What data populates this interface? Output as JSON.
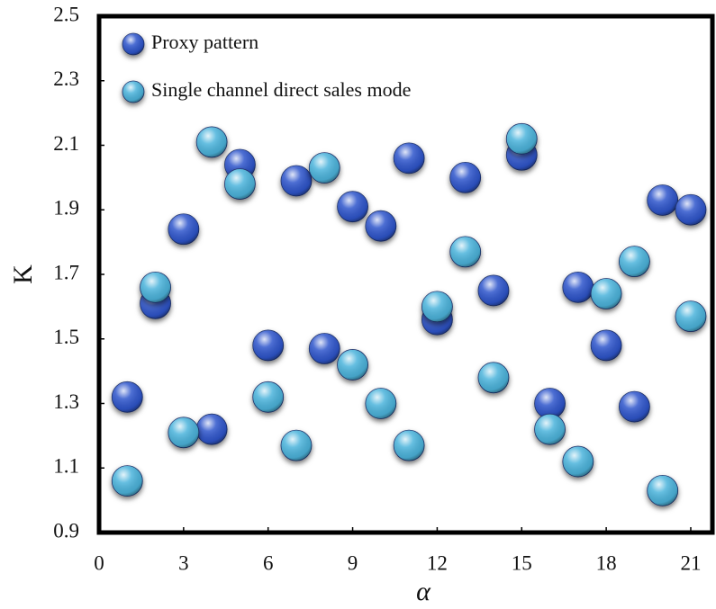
{
  "chart_data": {
    "type": "scatter",
    "x_label": "α",
    "y_label": "K",
    "x": [
      1,
      2,
      3,
      4,
      5,
      6,
      7,
      8,
      9,
      10,
      11,
      12,
      13,
      14,
      15,
      16,
      17,
      18,
      19,
      20,
      21
    ],
    "series": [
      {
        "name": "Proxy pattern",
        "color": "#2f56cc",
        "values": [
          1.32,
          1.61,
          1.84,
          1.22,
          2.04,
          1.48,
          1.99,
          1.47,
          1.91,
          1.85,
          2.06,
          1.56,
          2.0,
          1.65,
          2.07,
          1.3,
          1.66,
          1.48,
          1.29,
          1.93,
          1.9
        ]
      },
      {
        "name": "Single channel direct sales mode",
        "color": "#4cb4dc",
        "values": [
          1.06,
          1.66,
          1.21,
          2.11,
          1.98,
          1.32,
          1.17,
          2.03,
          1.42,
          1.3,
          1.17,
          1.6,
          1.77,
          1.38,
          2.12,
          1.22,
          1.12,
          1.64,
          1.74,
          1.03,
          1.57
        ]
      }
    ],
    "xlim": [
      0,
      21.8
    ],
    "xticks": [
      0,
      3,
      6,
      9,
      12,
      15,
      18,
      21
    ],
    "ylim": [
      0.9,
      2.5
    ],
    "yticks": [
      0.9,
      1.1,
      1.3,
      1.5,
      1.7,
      1.9,
      2.1,
      2.3,
      2.5
    ],
    "legend": "upper-left"
  }
}
